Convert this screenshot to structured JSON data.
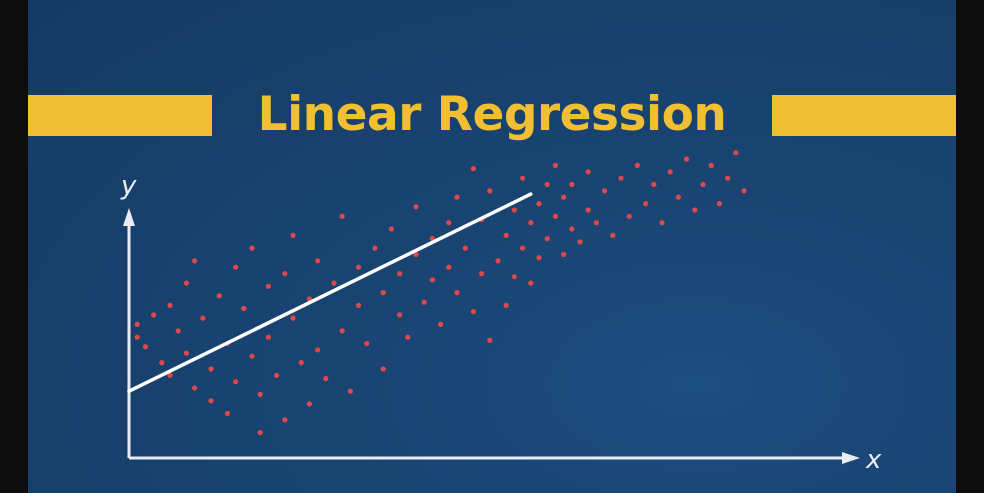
{
  "title": "Linear Regression",
  "colors": {
    "background": "#17406c",
    "accent": "#f0bf33",
    "axis": "#e9edf3",
    "points": "#e34848",
    "line": "#ffffff"
  },
  "chart_data": {
    "type": "scatter",
    "title": "Linear Regression",
    "xlabel": "x",
    "ylabel": "y",
    "xlim": [
      0,
      100
    ],
    "ylim": [
      0,
      100
    ],
    "grid": false,
    "legend": "none",
    "regression_line": {
      "x": [
        0,
        49
      ],
      "y": [
        21,
        83
      ]
    },
    "points": [
      [
        1,
        42
      ],
      [
        1,
        38
      ],
      [
        2,
        35
      ],
      [
        3,
        45
      ],
      [
        4,
        30
      ],
      [
        5,
        48
      ],
      [
        5,
        26
      ],
      [
        6,
        40
      ],
      [
        7,
        33
      ],
      [
        7,
        55
      ],
      [
        8,
        22
      ],
      [
        8,
        62
      ],
      [
        9,
        44
      ],
      [
        10,
        28
      ],
      [
        10,
        18
      ],
      [
        11,
        51
      ],
      [
        12,
        36
      ],
      [
        12,
        14
      ],
      [
        13,
        24
      ],
      [
        13,
        60
      ],
      [
        14,
        47
      ],
      [
        15,
        32
      ],
      [
        15,
        66
      ],
      [
        16,
        20
      ],
      [
        16,
        8
      ],
      [
        17,
        54
      ],
      [
        17,
        38
      ],
      [
        18,
        26
      ],
      [
        19,
        58
      ],
      [
        19,
        12
      ],
      [
        20,
        44
      ],
      [
        20,
        70
      ],
      [
        21,
        30
      ],
      [
        22,
        50
      ],
      [
        22,
        17
      ],
      [
        23,
        62
      ],
      [
        23,
        34
      ],
      [
        24,
        25
      ],
      [
        25,
        55
      ],
      [
        26,
        40
      ],
      [
        26,
        76
      ],
      [
        27,
        21
      ],
      [
        28,
        60
      ],
      [
        28,
        48
      ],
      [
        29,
        36
      ],
      [
        30,
        66
      ],
      [
        31,
        52
      ],
      [
        31,
        28
      ],
      [
        32,
        72
      ],
      [
        33,
        45
      ],
      [
        33,
        58
      ],
      [
        34,
        38
      ],
      [
        35,
        64
      ],
      [
        35,
        79
      ],
      [
        36,
        49
      ],
      [
        37,
        56
      ],
      [
        37,
        69
      ],
      [
        38,
        42
      ],
      [
        39,
        74
      ],
      [
        39,
        60
      ],
      [
        40,
        52
      ],
      [
        40,
        82
      ],
      [
        41,
        66
      ],
      [
        42,
        46
      ],
      [
        42,
        91
      ],
      [
        43,
        58
      ],
      [
        43,
        75
      ],
      [
        44,
        84
      ],
      [
        44,
        37
      ],
      [
        45,
        62
      ],
      [
        46,
        70
      ],
      [
        46,
        48
      ],
      [
        47,
        78
      ],
      [
        47,
        57
      ],
      [
        48,
        66
      ],
      [
        48,
        88
      ],
      [
        49,
        74
      ],
      [
        49,
        55
      ],
      [
        50,
        80
      ],
      [
        50,
        63
      ],
      [
        51,
        86
      ],
      [
        51,
        69
      ],
      [
        52,
        76
      ],
      [
        52,
        92
      ],
      [
        53,
        64
      ],
      [
        53,
        82
      ],
      [
        54,
        72
      ],
      [
        54,
        86
      ],
      [
        55,
        68
      ],
      [
        56,
        78
      ],
      [
        56,
        90
      ],
      [
        57,
        74
      ],
      [
        58,
        84
      ],
      [
        59,
        70
      ],
      [
        60,
        88
      ],
      [
        61,
        76
      ],
      [
        62,
        92
      ],
      [
        63,
        80
      ],
      [
        64,
        86
      ],
      [
        65,
        74
      ],
      [
        66,
        90
      ],
      [
        67,
        82
      ],
      [
        68,
        94
      ],
      [
        69,
        78
      ],
      [
        70,
        86
      ],
      [
        71,
        92
      ],
      [
        72,
        80
      ],
      [
        73,
        88
      ],
      [
        74,
        96
      ],
      [
        75,
        84
      ]
    ]
  }
}
